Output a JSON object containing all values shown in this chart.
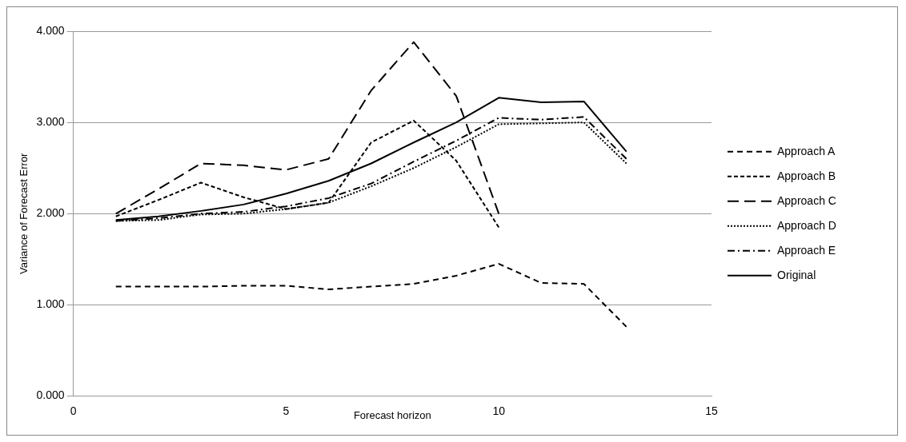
{
  "chart_data": {
    "type": "line",
    "xlabel": "Forecast horizon",
    "ylabel": "Variance of Forecast Error",
    "x": [
      1,
      2,
      3,
      4,
      5,
      6,
      7,
      8,
      9,
      10,
      11,
      12,
      13
    ],
    "series": [
      {
        "name": "Approach A",
        "color": "#000000",
        "line_style": "dashed",
        "values": [
          1.2,
          1.2,
          1.2,
          1.21,
          1.21,
          1.17,
          1.2,
          1.23,
          1.32,
          1.45,
          1.24,
          1.23,
          0.76
        ]
      },
      {
        "name": "Approach B",
        "color": "#000000",
        "line_style": "dashed",
        "x": [
          1,
          2,
          3,
          4,
          5,
          6,
          7,
          8,
          9,
          10
        ],
        "values": [
          1.97,
          2.15,
          2.34,
          2.18,
          2.05,
          2.12,
          2.78,
          3.02,
          2.58,
          1.85
        ]
      },
      {
        "name": "Approach C",
        "color": "#000000",
        "line_style": "dashed",
        "x": [
          1,
          2,
          3,
          4,
          5,
          6,
          7,
          8,
          9,
          10
        ],
        "values": [
          2.0,
          2.27,
          2.55,
          2.53,
          2.48,
          2.6,
          3.35,
          3.88,
          3.29,
          2.0
        ]
      },
      {
        "name": "Approach D",
        "color": "#000000",
        "line_style": "dotted",
        "values": [
          1.92,
          1.93,
          1.99,
          2.0,
          2.05,
          2.12,
          2.3,
          2.5,
          2.73,
          2.98,
          2.99,
          3.0,
          2.55
        ]
      },
      {
        "name": "Approach E",
        "color": "#000000",
        "line_style": "dashed",
        "values": [
          1.92,
          1.95,
          2.0,
          2.02,
          2.08,
          2.17,
          2.33,
          2.57,
          2.8,
          3.05,
          3.03,
          3.06,
          2.6
        ]
      },
      {
        "name": "Original",
        "color": "#000000",
        "line_style": "solid",
        "values": [
          1.93,
          1.97,
          2.03,
          2.1,
          2.22,
          2.36,
          2.55,
          2.78,
          3.0,
          3.27,
          3.22,
          3.23,
          2.68
        ]
      }
    ],
    "xlim": [
      0,
      15
    ],
    "xticks": [
      0,
      5,
      10,
      15
    ],
    "ylim": [
      0,
      4
    ],
    "yticks": [
      {
        "value": 0,
        "label": "0.000"
      },
      {
        "value": 1,
        "label": "1.000"
      },
      {
        "value": 2,
        "label": "2.000"
      },
      {
        "value": 3,
        "label": "3.000"
      },
      {
        "value": 4,
        "label": "4.000"
      }
    ],
    "grid": "y",
    "legend": "right",
    "marker": "none"
  }
}
